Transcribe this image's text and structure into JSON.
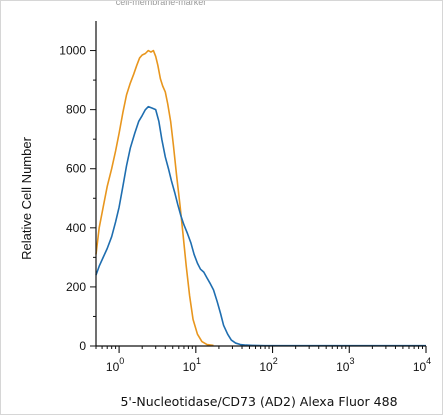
{
  "top_note": "cell-membrane-marker",
  "chart_data": {
    "type": "line",
    "title": "",
    "xlabel": "5'-Nucleotidase/CD73 (AD2) Alexa Fluor 488",
    "ylabel": "Relative Cell Number",
    "x_scale": "log",
    "xlim": [
      0.5,
      10000
    ],
    "ylim": [
      0,
      1100
    ],
    "x_ticks": [
      1,
      10,
      100,
      1000,
      10000
    ],
    "x_tick_labels": [
      {
        "base": "10",
        "exp": "0"
      },
      {
        "base": "10",
        "exp": "1"
      },
      {
        "base": "10",
        "exp": "2"
      },
      {
        "base": "10",
        "exp": "3"
      },
      {
        "base": "10",
        "exp": "4"
      }
    ],
    "y_ticks": [
      0,
      200,
      400,
      600,
      800,
      1000
    ],
    "y_tick_labels": [
      "0",
      "200",
      "400",
      "600",
      "800",
      "1000"
    ],
    "grid": false,
    "series": [
      {
        "color": "#e8961e",
        "x": [
          0.5,
          0.55,
          0.62,
          0.7,
          0.8,
          0.9,
          1.0,
          1.12,
          1.25,
          1.4,
          1.55,
          1.7,
          1.85,
          2.0,
          2.2,
          2.4,
          2.6,
          2.8,
          3.0,
          3.2,
          3.45,
          3.7,
          4.0,
          4.3,
          4.7,
          5.1,
          5.6,
          6.2,
          6.8,
          7.5,
          8.3,
          9.2,
          10.5,
          12.0,
          14.0,
          17.0
        ],
        "y": [
          310,
          400,
          470,
          540,
          600,
          660,
          720,
          790,
          850,
          890,
          920,
          950,
          975,
          985,
          990,
          1000,
          995,
          1000,
          980,
          950,
          905,
          880,
          860,
          820,
          760,
          680,
          580,
          480,
          380,
          270,
          170,
          90,
          40,
          15,
          5,
          2
        ]
      },
      {
        "color": "#1f6eb0",
        "x": [
          0.5,
          0.55,
          0.62,
          0.7,
          0.8,
          0.9,
          1.0,
          1.12,
          1.25,
          1.4,
          1.6,
          1.8,
          2.0,
          2.2,
          2.4,
          2.7,
          3.0,
          3.3,
          3.6,
          4.0,
          4.4,
          4.8,
          5.3,
          5.8,
          6.4,
          7.0,
          7.8,
          8.6,
          9.5,
          10.5,
          11.5,
          12.7,
          14.0,
          15.5,
          17.0,
          19.0,
          21.0,
          23.0,
          26.0,
          29.0,
          33.0,
          38.0,
          45.0,
          55.0,
          80.0,
          200.0,
          1000.0,
          10000.0
        ],
        "y": [
          240,
          270,
          300,
          330,
          370,
          420,
          470,
          540,
          610,
          670,
          720,
          760,
          780,
          800,
          810,
          805,
          800,
          760,
          700,
          640,
          600,
          560,
          520,
          480,
          440,
          410,
          380,
          350,
          310,
          280,
          260,
          250,
          230,
          210,
          190,
          150,
          110,
          70,
          40,
          20,
          10,
          5,
          3,
          2,
          1,
          1,
          1,
          1
        ]
      }
    ]
  }
}
